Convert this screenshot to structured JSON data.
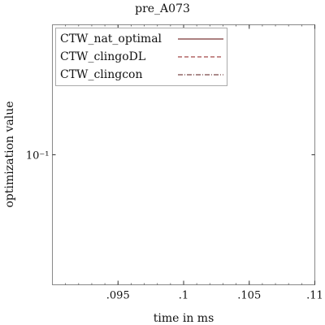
{
  "chart_data": {
    "type": "line",
    "title": "pre_A073",
    "xlabel": "time in ms",
    "ylabel": "optimization value",
    "xlim": [
      0.09,
      0.11
    ],
    "x_ticks": [
      {
        "value": 0.095,
        "label": ".095"
      },
      {
        "value": 0.1,
        "label": ".1"
      },
      {
        "value": 0.105,
        "label": ".105"
      },
      {
        "value": 0.11,
        "label": ".11"
      }
    ],
    "x_minor_step": 0.001,
    "y_scale": "log",
    "ylim": [
      0.05,
      0.2
    ],
    "y_ticks": [
      {
        "value": 0.1,
        "label": "10⁻¹"
      }
    ],
    "grid": false,
    "legend_position": "top-left",
    "series": [
      {
        "name": "CTW_nat_optimal",
        "color": "#5a0000",
        "dash": "solid",
        "x": [],
        "y": []
      },
      {
        "name": "CTW_clingoDL",
        "color": "#8b1a1a",
        "dash": "dashed",
        "x": [],
        "y": []
      },
      {
        "name": "CTW_clingcon",
        "color": "#5a1a1a",
        "dash": "dashdot",
        "x": [],
        "y": []
      }
    ]
  }
}
